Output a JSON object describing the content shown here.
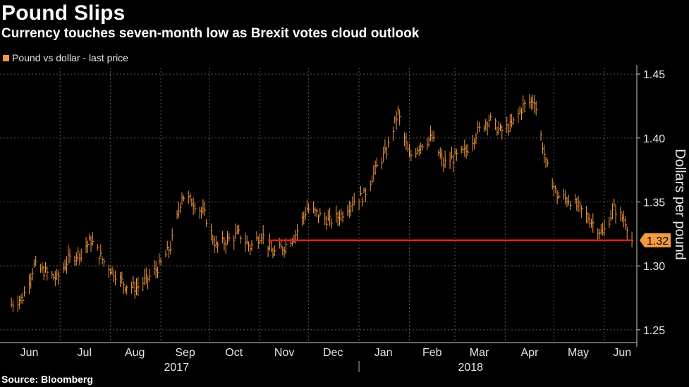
{
  "header": {
    "title": "Pound Slips",
    "subtitle": "Currency touches seven-month low as Brexit votes cloud outlook"
  },
  "legend": {
    "label": "Pound vs dollar - last price"
  },
  "footer": {
    "source": "Source: Bloomberg"
  },
  "colors": {
    "series": "#f59a3f",
    "reference_line": "#e01e1e",
    "grid": "#5a5a5a",
    "background": "#000000"
  },
  "chart_data": {
    "type": "line",
    "title": "Pound Slips",
    "subtitle": "Currency touches seven-month low as Brexit votes cloud outlook",
    "ylabel": "Dollars per pound",
    "xlabel": "",
    "ylim": [
      1.24,
      1.455
    ],
    "yticks": [
      "1.25",
      "1.30",
      "1.35",
      "1.40",
      "1.45"
    ],
    "grid": true,
    "legend_position": "top-left",
    "x_tick_labels": [
      "Jun",
      "Jul",
      "Aug",
      "Sep",
      "Oct",
      "Nov",
      "Dec",
      "Jan",
      "Feb",
      "Mar",
      "Apr",
      "May",
      "Jun"
    ],
    "year_labels": [
      "2017",
      "2018"
    ],
    "last_value_label": "1.32",
    "reference_line": {
      "value": 1.32,
      "from": "2017-11",
      "to": "2018-06"
    },
    "series": [
      {
        "name": "Pound vs dollar - last price",
        "x": [
          "2017-06-01",
          "2017-06-08",
          "2017-06-15",
          "2017-06-22",
          "2017-06-29",
          "2017-07-06",
          "2017-07-13",
          "2017-07-20",
          "2017-07-27",
          "2017-08-03",
          "2017-08-10",
          "2017-08-17",
          "2017-08-24",
          "2017-08-31",
          "2017-09-07",
          "2017-09-14",
          "2017-09-21",
          "2017-09-28",
          "2017-10-05",
          "2017-10-12",
          "2017-10-19",
          "2017-10-26",
          "2017-11-02",
          "2017-11-09",
          "2017-11-16",
          "2017-11-23",
          "2017-11-30",
          "2017-12-07",
          "2017-12-14",
          "2017-12-21",
          "2017-12-28",
          "2018-01-04",
          "2018-01-11",
          "2018-01-18",
          "2018-01-25",
          "2018-02-01",
          "2018-02-08",
          "2018-02-15",
          "2018-02-22",
          "2018-03-01",
          "2018-03-08",
          "2018-03-15",
          "2018-03-22",
          "2018-03-29",
          "2018-04-05",
          "2018-04-12",
          "2018-04-19",
          "2018-04-26",
          "2018-05-03",
          "2018-05-10",
          "2018-05-17",
          "2018-05-24",
          "2018-05-31",
          "2018-06-07",
          "2018-06-14",
          "2018-06-18"
        ],
        "y": [
          1.27,
          1.275,
          1.3,
          1.295,
          1.29,
          1.305,
          1.31,
          1.32,
          1.305,
          1.295,
          1.285,
          1.283,
          1.29,
          1.3,
          1.315,
          1.355,
          1.35,
          1.34,
          1.315,
          1.32,
          1.325,
          1.315,
          1.325,
          1.31,
          1.315,
          1.325,
          1.345,
          1.34,
          1.335,
          1.34,
          1.35,
          1.355,
          1.375,
          1.39,
          1.42,
          1.385,
          1.395,
          1.4,
          1.38,
          1.385,
          1.39,
          1.405,
          1.415,
          1.405,
          1.41,
          1.425,
          1.43,
          1.38,
          1.355,
          1.352,
          1.345,
          1.335,
          1.325,
          1.345,
          1.335,
          1.32
        ]
      }
    ]
  }
}
